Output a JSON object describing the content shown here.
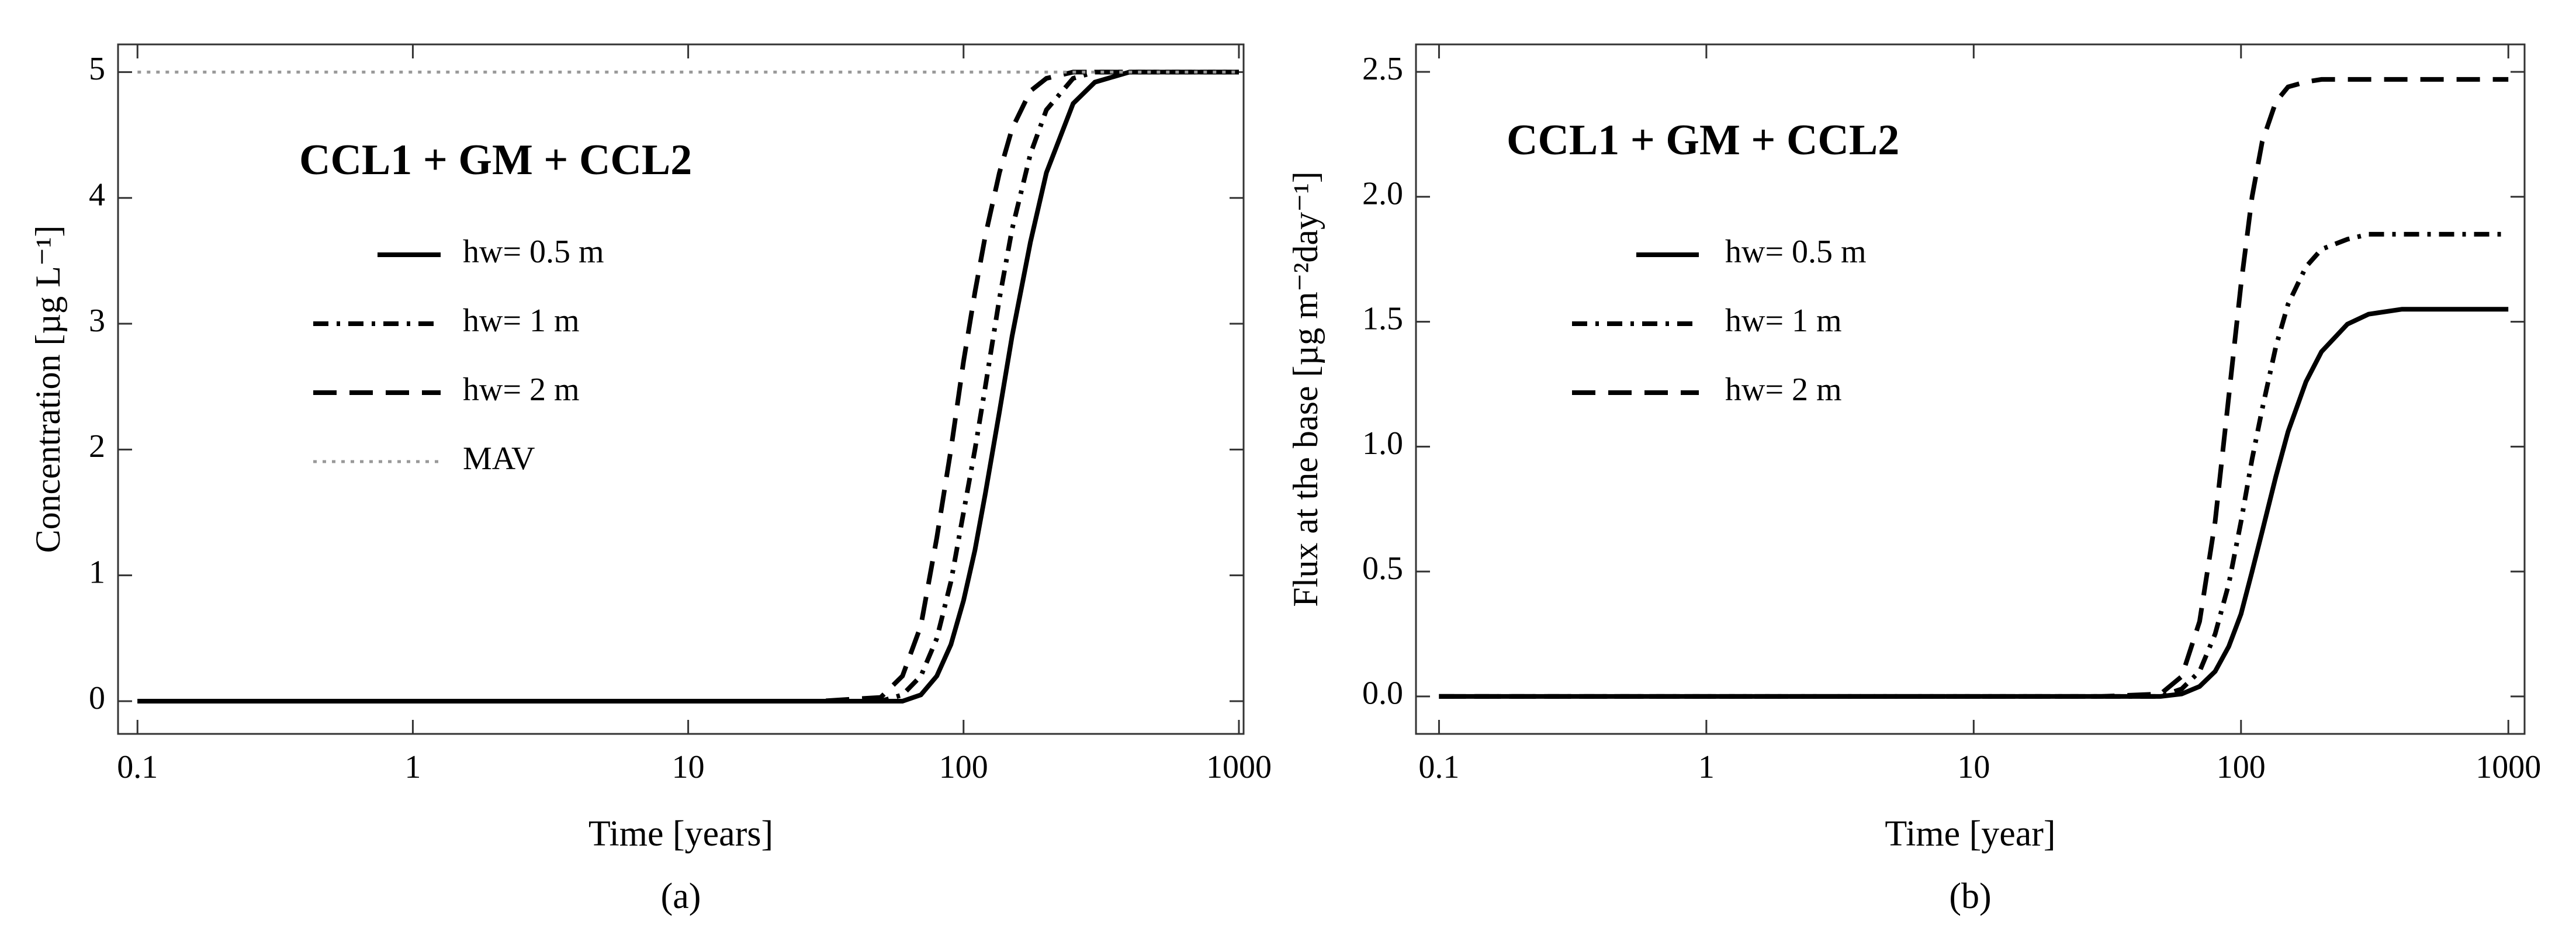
{
  "chart_data": [
    {
      "type": "line",
      "title": "CCL1 + GM + CCL2",
      "panel_label": "(a)",
      "xlabel": "Time [years]",
      "ylabel": "Concentration [µg L⁻¹]",
      "log_x": true,
      "grid": false,
      "xlim": [
        0.085,
        1040
      ],
      "ylim": [
        -0.26,
        5.22
      ],
      "xticks": [
        0.1,
        1,
        10,
        100,
        1000
      ],
      "yticks": [
        0,
        1,
        2,
        3,
        4,
        5
      ],
      "x": [
        0.1,
        1,
        10,
        30,
        50,
        60,
        70,
        80,
        90,
        100,
        110,
        120,
        135,
        150,
        175,
        200,
        250,
        300,
        400,
        500,
        700,
        1000
      ],
      "series": [
        {
          "name": "hw= 0.5 m",
          "color": "#000000",
          "dash": "solid",
          "values": [
            0,
            0,
            0,
            0,
            0,
            0,
            0.05,
            0.2,
            0.45,
            0.8,
            1.2,
            1.65,
            2.3,
            2.9,
            3.65,
            4.2,
            4.75,
            4.92,
            5,
            5,
            5,
            5
          ]
        },
        {
          "name": "hw= 1 m",
          "color": "#000000",
          "dash": "dashdot",
          "values": [
            0,
            0,
            0,
            0,
            0,
            0.05,
            0.2,
            0.5,
            0.95,
            1.5,
            2.0,
            2.5,
            3.2,
            3.75,
            4.35,
            4.7,
            4.95,
            5,
            5,
            5,
            5,
            5
          ]
        },
        {
          "name": "hw= 2 m",
          "color": "#000000",
          "dash": "dashed",
          "values": [
            0,
            0,
            0,
            0,
            0.03,
            0.2,
            0.6,
            1.3,
            2.0,
            2.7,
            3.25,
            3.7,
            4.2,
            4.55,
            4.85,
            4.95,
            5,
            5,
            5,
            5,
            5,
            5
          ]
        },
        {
          "name": "MAV",
          "color": "#999999",
          "dash": "dotted",
          "values": [
            5,
            5,
            5,
            5,
            5,
            5,
            5,
            5,
            5,
            5,
            5,
            5,
            5,
            5,
            5,
            5,
            5,
            5,
            5,
            5,
            5,
            5
          ]
        }
      ]
    },
    {
      "type": "line",
      "title": "CCL1 + GM + CCL2",
      "panel_label": "(b)",
      "xlabel": "Time [year]",
      "ylabel": "Flux at the base [µg m⁻²day⁻¹]",
      "log_x": true,
      "grid": false,
      "xlim": [
        0.082,
        1150
      ],
      "ylim": [
        -0.15,
        2.61
      ],
      "xticks": [
        0.1,
        1,
        10,
        100,
        1000
      ],
      "yticks": [
        {
          "value": 0,
          "label": "0.0"
        },
        0.5,
        {
          "value": 1,
          "label": "1.0"
        },
        1.5,
        {
          "value": 2,
          "label": "2.0"
        },
        2.5
      ],
      "x": [
        0.1,
        1,
        10,
        30,
        50,
        60,
        70,
        80,
        90,
        100,
        110,
        120,
        135,
        150,
        175,
        200,
        250,
        300,
        400,
        500,
        700,
        1000
      ],
      "series": [
        {
          "name": "hw= 0.5 m",
          "color": "#000000",
          "dash": "solid",
          "values": [
            0,
            0,
            0,
            0,
            0,
            0.01,
            0.04,
            0.1,
            0.2,
            0.33,
            0.5,
            0.66,
            0.88,
            1.06,
            1.26,
            1.38,
            1.49,
            1.53,
            1.55,
            1.55,
            1.55,
            1.55
          ]
        },
        {
          "name": "hw= 1 m",
          "color": "#000000",
          "dash": "dashdot",
          "values": [
            0,
            0,
            0,
            0,
            0,
            0.03,
            0.1,
            0.25,
            0.45,
            0.7,
            0.95,
            1.15,
            1.4,
            1.57,
            1.72,
            1.79,
            1.83,
            1.85,
            1.85,
            1.85,
            1.85,
            1.85
          ]
        },
        {
          "name": "hw= 2 m",
          "color": "#000000",
          "dash": "dashed",
          "values": [
            0,
            0,
            0,
            0,
            0.01,
            0.08,
            0.3,
            0.7,
            1.2,
            1.65,
            2.0,
            2.22,
            2.38,
            2.44,
            2.46,
            2.47,
            2.47,
            2.47,
            2.47,
            2.47,
            2.47,
            2.47
          ]
        }
      ]
    }
  ]
}
